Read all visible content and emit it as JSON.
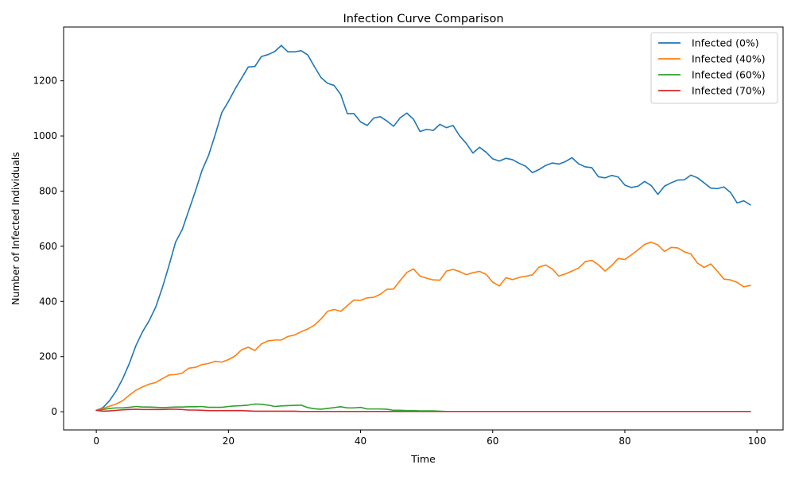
{
  "chart_data": {
    "type": "line",
    "title": "Infection Curve Comparison",
    "xlabel": "Time",
    "ylabel": "Number of Infected Individuals",
    "xlim": [
      -4.95,
      103.95
    ],
    "ylim": [
      -66,
      1395
    ],
    "xticks": [
      0,
      20,
      40,
      60,
      80,
      100
    ],
    "yticks": [
      0,
      200,
      400,
      600,
      800,
      1000,
      1200
    ],
    "grid": false,
    "legend_position": "top-right",
    "x": [
      0,
      1,
      2,
      3,
      4,
      5,
      6,
      7,
      8,
      9,
      10,
      11,
      12,
      13,
      14,
      15,
      16,
      17,
      18,
      19,
      20,
      21,
      22,
      23,
      24,
      25,
      26,
      27,
      28,
      29,
      30,
      31,
      32,
      33,
      34,
      35,
      36,
      37,
      38,
      39,
      40,
      41,
      42,
      43,
      44,
      45,
      46,
      47,
      48,
      49,
      50,
      51,
      52,
      53,
      54,
      55,
      56,
      57,
      58,
      59,
      60,
      61,
      62,
      63,
      64,
      65,
      66,
      67,
      68,
      69,
      70,
      71,
      72,
      73,
      74,
      75,
      76,
      77,
      78,
      79,
      80,
      81,
      82,
      83,
      84,
      85,
      86,
      87,
      88,
      89,
      90,
      91,
      92,
      93,
      94,
      95,
      96,
      97,
      98,
      99
    ],
    "series": [
      {
        "name": "Infected (0%)",
        "color": "#1f77b4",
        "values": [
          5,
          15,
          40,
          75,
          120,
          175,
          240,
          290,
          330,
          380,
          450,
          530,
          615,
          660,
          730,
          800,
          875,
          930,
          1005,
          1085,
          1125,
          1170,
          1210,
          1250,
          1252,
          1288,
          1295,
          1306,
          1328,
          1305,
          1305,
          1309,
          1294,
          1252,
          1212,
          1191,
          1183,
          1150,
          1081,
          1081,
          1051,
          1038,
          1065,
          1070,
          1054,
          1035,
          1066,
          1083,
          1061,
          1016,
          1024,
          1020,
          1042,
          1030,
          1038,
          1000,
          973,
          938,
          959,
          941,
          917,
          909,
          919,
          914,
          901,
          890,
          867,
          878,
          893,
          902,
          898,
          907,
          921,
          899,
          888,
          885,
          852,
          848,
          857,
          851,
          822,
          813,
          818,
          835,
          820,
          788,
          818,
          830,
          840,
          841,
          858,
          848,
          830,
          811,
          809,
          815,
          795,
          757,
          765,
          750
        ]
      },
      {
        "name": "Infected (40%)",
        "color": "#ff7f0e",
        "values": [
          5,
          12,
          20,
          28,
          40,
          60,
          78,
          90,
          100,
          106,
          120,
          133,
          135,
          140,
          158,
          161,
          171,
          175,
          183,
          180,
          189,
          202,
          225,
          234,
          222,
          246,
          257,
          260,
          260,
          273,
          278,
          290,
          300,
          314,
          336,
          364,
          371,
          364,
          385,
          405,
          404,
          413,
          415,
          426,
          444,
          445,
          476,
          505,
          518,
          492,
          484,
          478,
          477,
          510,
          516,
          508,
          497,
          504,
          509,
          498,
          470,
          456,
          486,
          479,
          487,
          491,
          496,
          524,
          532,
          518,
          492,
          500,
          510,
          521,
          544,
          549,
          533,
          510,
          530,
          556,
          552,
          569,
          587,
          607,
          615,
          605,
          581,
          596,
          594,
          580,
          572,
          539,
          523,
          536,
          510,
          481,
          478,
          469,
          453,
          458
        ]
      },
      {
        "name": "Infected (60%)",
        "color": "#2ca02c",
        "values": [
          5,
          8,
          12,
          14,
          14,
          16,
          19,
          17,
          17,
          16,
          15,
          16,
          17,
          17,
          18,
          18,
          19,
          16,
          16,
          16,
          19,
          21,
          22,
          24,
          28,
          27,
          24,
          19,
          21,
          22,
          23,
          24,
          15,
          11,
          9,
          12,
          15,
          18,
          14,
          14,
          16,
          10,
          10,
          10,
          9,
          5,
          5,
          4,
          4,
          3,
          3,
          3,
          2,
          1,
          1,
          1,
          1,
          1,
          1,
          1,
          1,
          1,
          1,
          1,
          1,
          1,
          1,
          1,
          1,
          1,
          1,
          1,
          1,
          1,
          1,
          1,
          1,
          1,
          1,
          1,
          1,
          1,
          1,
          1,
          1,
          1,
          1,
          1,
          1,
          1,
          1,
          1,
          1,
          1,
          1,
          1,
          1,
          1,
          1,
          1
        ]
      },
      {
        "name": "Infected (70%)",
        "color": "#d62728",
        "values": [
          5,
          2,
          3,
          5,
          7,
          8,
          9,
          8,
          8,
          8,
          8,
          9,
          9,
          8,
          6,
          6,
          5,
          4,
          4,
          4,
          4,
          4,
          4,
          3,
          2,
          2,
          2,
          2,
          2,
          2,
          2,
          1,
          1,
          1,
          1,
          1,
          1,
          1,
          1,
          1,
          1,
          1,
          1,
          1,
          1,
          1,
          1,
          1,
          1,
          1,
          1,
          1,
          1,
          1,
          1,
          1,
          1,
          1,
          1,
          1,
          1,
          1,
          1,
          1,
          1,
          1,
          1,
          1,
          1,
          1,
          1,
          1,
          1,
          1,
          1,
          1,
          1,
          1,
          1,
          1,
          1,
          1,
          1,
          1,
          1,
          1,
          1,
          1,
          1,
          1,
          1,
          1,
          1,
          1,
          1,
          1,
          1,
          1,
          1,
          1
        ]
      }
    ]
  }
}
